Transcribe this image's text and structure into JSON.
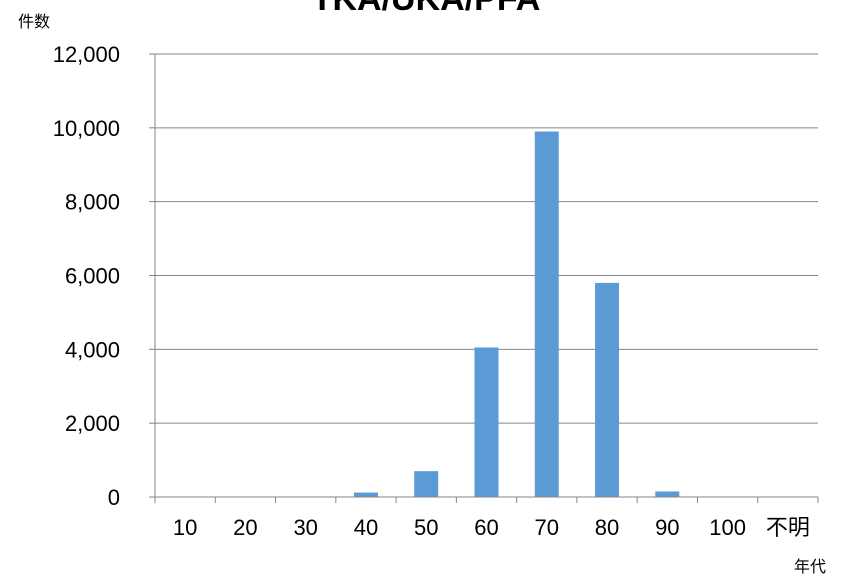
{
  "chart_data": {
    "type": "bar",
    "title": "TKA/UKA/PFA",
    "ylabel": "件数",
    "xlabel": "年代",
    "categories": [
      "10",
      "20",
      "30",
      "40",
      "50",
      "60",
      "70",
      "80",
      "90",
      "100",
      "不明"
    ],
    "values": [
      0,
      0,
      5,
      120,
      700,
      4050,
      9900,
      5800,
      150,
      0,
      0
    ],
    "ylim": [
      0,
      12000
    ],
    "yticks": [
      0,
      2000,
      4000,
      6000,
      8000,
      10000,
      12000
    ],
    "ytick_labels": [
      "0",
      "2,000",
      "4,000",
      "6,000",
      "8,000",
      "10,000",
      "12,000"
    ],
    "grid": true,
    "legend": "none",
    "colors": {
      "bar": "#5b9bd5",
      "grid": "#868686",
      "axis": "#868686"
    }
  }
}
